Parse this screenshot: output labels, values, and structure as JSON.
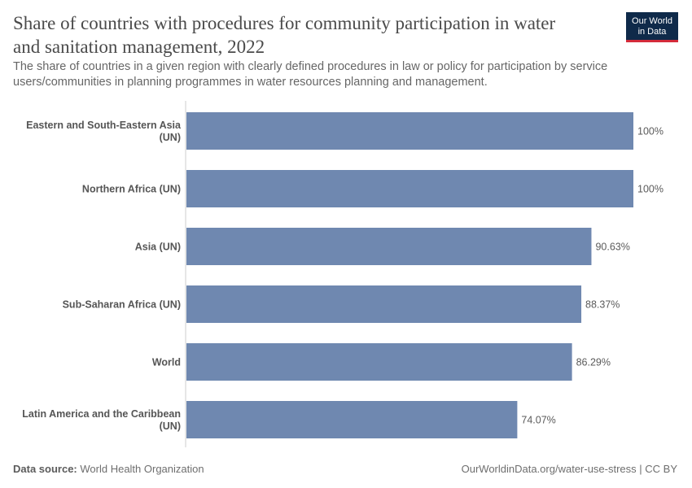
{
  "header": {
    "title": "Share of countries with procedures for community participation in water and sanitation management, 2022",
    "subtitle": "The share of countries in a given region with clearly defined procedures in law or policy for participation by service users/communities in planning programmes in water resources planning and management.",
    "logo_line1": "Our World",
    "logo_line2": "in Data"
  },
  "footer": {
    "source_label": "Data source:",
    "source": "World Health Organization",
    "url": "OurWorldinData.org/water-use-stress | CC BY"
  },
  "colors": {
    "bar": "#6f88b0",
    "axis": "#cccccc"
  },
  "chart_data": {
    "type": "bar",
    "orientation": "horizontal",
    "categories": [
      "Eastern and South-Eastern Asia (UN)",
      "Northern Africa (UN)",
      "Asia (UN)",
      "Sub-Saharan Africa (UN)",
      "World",
      "Latin America and the Caribbean (UN)"
    ],
    "values": [
      100,
      100,
      90.63,
      88.37,
      86.29,
      74.07
    ],
    "value_labels": [
      "100%",
      "100%",
      "90.63%",
      "88.37%",
      "86.29%",
      "74.07%"
    ],
    "xlim": [
      0,
      100
    ],
    "unit": "%"
  }
}
